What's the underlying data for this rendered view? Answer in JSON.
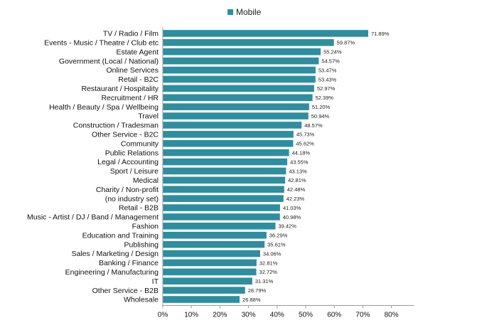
{
  "chart_data": {
    "type": "bar",
    "orientation": "horizontal",
    "title": "",
    "xlabel": "",
    "ylabel": "",
    "xlim": [
      0,
      80
    ],
    "x_ticks": [
      "0%",
      "10%",
      "20%",
      "30%",
      "40%",
      "50%",
      "60%",
      "70%",
      "80%"
    ],
    "grid": false,
    "legend": {
      "position": "top",
      "entries": [
        "Mobile"
      ]
    },
    "color": "#2e8ea0",
    "categories": [
      "TV / Radio / Film",
      "Events - Music / Theatre / Club etc",
      "Estate Agent",
      "Government (Local / National)",
      "Online Services",
      "Retail - B2C",
      "Restaurant / Hospitality",
      "Recruitment / HR",
      "Health / Beauty / Spa / Wellbeing",
      "Travel",
      "Construction / Tradesman",
      "Other Service - B2C",
      "Community",
      "Public Relations",
      "Legal / Accounting",
      "Sport / Leisure",
      "Medical",
      "Charity / Non-profit",
      "(no industry set)",
      "Retail - B2B",
      "Music - Artist / DJ / Band / Management",
      "Fashion",
      "Education and Training",
      "Publishing",
      "Sales / Marketing / Design",
      "Banking / Finance",
      "Engineering / Manufacturing",
      "IT",
      "Other Service - B2B",
      "Wholesale"
    ],
    "series": [
      {
        "name": "Mobile",
        "values": [
          71.89,
          59.87,
          55.24,
          54.57,
          53.47,
          53.43,
          52.97,
          52.39,
          51.2,
          50.94,
          48.57,
          45.73,
          45.62,
          44.18,
          43.55,
          43.13,
          42.81,
          42.48,
          42.23,
          41.03,
          40.98,
          39.42,
          36.29,
          35.61,
          34.06,
          32.81,
          32.72,
          31.31,
          28.79,
          26.88
        ],
        "labels": [
          "71.89%",
          "59.87%",
          "55.24%",
          "54.57%",
          "53.47%",
          "53.43%",
          "52.97%",
          "52.39%",
          "51.20%",
          "50.94%",
          "48.57%",
          "45.73%",
          "45.62%",
          "44.18%",
          "43.55%",
          "43.13%",
          "42.81%",
          "42.48%",
          "42.23%",
          "41.03%",
          "40.98%",
          "39.42%",
          "36.29%",
          "35.61%",
          "34.06%",
          "32.81%",
          "32.72%",
          "31.31%",
          "28.79%",
          "26.88%"
        ]
      }
    ]
  }
}
